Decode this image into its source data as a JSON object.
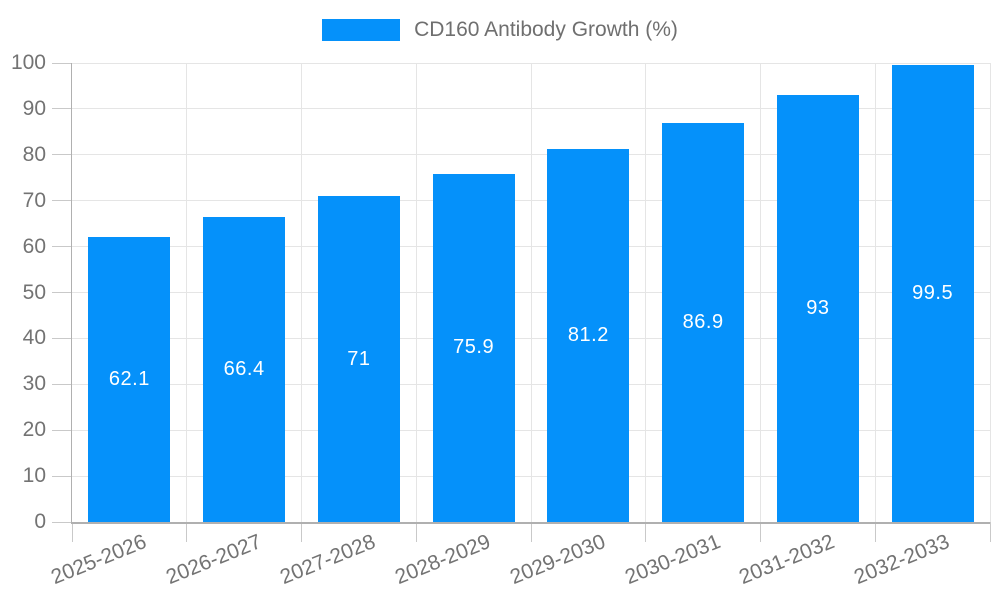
{
  "legend": {
    "label": "CD160 Antibody Growth (%)"
  },
  "chart_data": {
    "type": "bar",
    "title": "CD160 Antibody Growth (%)",
    "categories": [
      "2025-2026",
      "2026-2027",
      "2027-2028",
      "2028-2029",
      "2029-2030",
      "2030-2031",
      "2031-2032",
      "2032-2033"
    ],
    "series": [
      {
        "name": "CD160 Antibody Growth (%)",
        "values": [
          62.1,
          66.4,
          71,
          75.9,
          81.2,
          86.9,
          93,
          99.5
        ]
      }
    ],
    "value_labels": [
      "62.1",
      "66.4",
      "71",
      "75.9",
      "81.2",
      "86.9",
      "93",
      "99.5"
    ],
    "xlabel": "",
    "ylabel": "",
    "ylim": [
      0,
      100
    ],
    "yticks": [
      0,
      10,
      20,
      30,
      40,
      50,
      60,
      70,
      80,
      90,
      100
    ],
    "grid": "horizontal and vertical light gray lines, category-boundary vertical lines",
    "legend_position": "top-center",
    "value_label_position": "inside-middle",
    "colors": {
      "bar": "#0591fa",
      "bar_label_text": "#ffffff",
      "axis_line": "#b0b0b0",
      "tick_line": "#c9c9c9",
      "grid_line": "#e5e5e5",
      "axis_text": "#737373",
      "legend_text": "#6f6f6f",
      "background": "#ffffff"
    }
  }
}
